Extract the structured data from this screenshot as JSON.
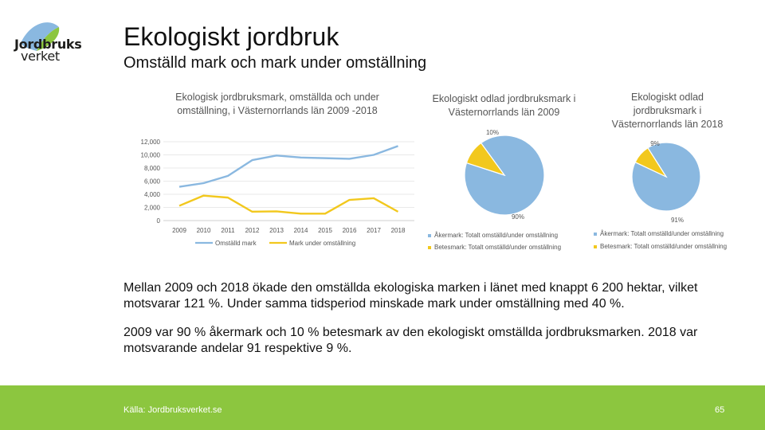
{
  "logo": {
    "line1": "Jordbruks",
    "line2": "verket"
  },
  "header": {
    "title": "Ekologiskt jordbruk",
    "subtitle": "Omställd mark och mark under omställning"
  },
  "colors": {
    "blue": "#8ab8e0",
    "yellow": "#f2c81d",
    "green": "#8cc63f"
  },
  "chart_data": [
    {
      "type": "line",
      "title": "Ekologisk jordbruksmark, omställda och under omställning, i Västernorrlands län 2009 -2018",
      "x": [
        "2009",
        "2010",
        "2011",
        "2012",
        "2013",
        "2014",
        "2015",
        "2016",
        "2017",
        "2018"
      ],
      "yticks": [
        "12,000",
        "10,000",
        "8,000",
        "6,000",
        "4,000",
        "2,000",
        "0"
      ],
      "ylim": [
        0,
        12000
      ],
      "series": [
        {
          "name": "Omställd mark",
          "color": "#8ab8e0",
          "values": [
            5150,
            5700,
            6800,
            9200,
            9900,
            9600,
            9500,
            9400,
            10000,
            11350
          ]
        },
        {
          "name": "Mark under omställning",
          "color": "#f2c81d",
          "values": [
            2250,
            3800,
            3500,
            1350,
            1400,
            1050,
            1050,
            3150,
            3400,
            1350
          ]
        }
      ]
    },
    {
      "type": "pie",
      "title": "Ekologiskt odlad jordbruksmark i Västernorrlands län 2009",
      "slices": [
        {
          "label": "Åkermark: Totalt omställd/under omställning",
          "value": 90,
          "text": "90%",
          "color": "#8ab8e0"
        },
        {
          "label": "Betesmark: Totalt omställd/under omställning",
          "value": 10,
          "text": "10%",
          "color": "#f2c81d"
        }
      ]
    },
    {
      "type": "pie",
      "title": "Ekologiskt odlad jordbruksmark i Västernorrlands län 2018",
      "slices": [
        {
          "label": "Åkermark: Totalt omställd/under omställning",
          "value": 91,
          "text": "91%",
          "color": "#8ab8e0"
        },
        {
          "label": "Betesmark: Totalt omställd/under omställning",
          "value": 9,
          "text": "9%",
          "color": "#f2c81d"
        }
      ]
    }
  ],
  "body": {
    "para1": "Mellan 2009 och 2018 ökade den omställda ekologiska marken i länet med knappt 6 200 hektar, vilket motsvarar 121 %. Under samma tidsperiod minskade mark under omställning med 40 %.",
    "para2": "2009 var 90 % åkermark och 10 % betesmark av den ekologiskt omställda jordbruksmarken. 2018 var motsvarande andelar 91 respektive 9 %."
  },
  "footer": {
    "source": "Källa: Jordbruksverket.se",
    "page": "65"
  }
}
